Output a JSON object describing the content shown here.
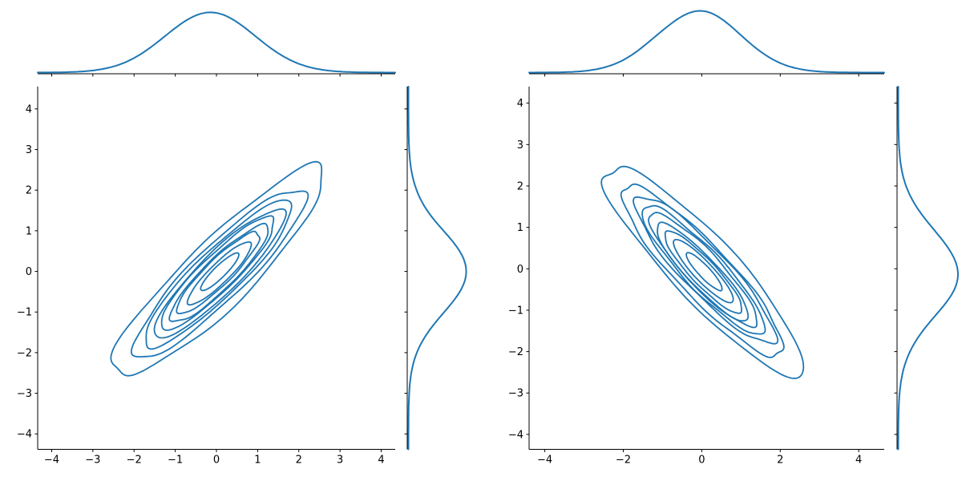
{
  "chart_data": {
    "type": "kde_jointplot_pair",
    "title": "",
    "description": "Two seaborn-style joint KDE contour plots with marginal density curves. Left panel: positively correlated bivariate normal data (contours elongated along +45 deg diagonal). Right panel: negatively correlated data (contours along -45 deg diagonal). No axis titles, no legend.",
    "style": {
      "line_color": "#1f77b4",
      "axis_color": "#000000",
      "tick_label_color": "#000000",
      "background": "#ffffff",
      "tick_font_size": 13,
      "contour_line_width": 1.8,
      "marginal_line_width": 2,
      "spine_width": 1,
      "tick_length": 3.5
    },
    "panels": [
      {
        "name": "joint-kde-positive-correlation",
        "correlation_sign": "positive",
        "x_axis": {
          "lim": [
            -4.34,
            4.34
          ],
          "ticks": [
            -4,
            -3,
            -2,
            -1,
            0,
            1,
            2,
            3,
            4
          ]
        },
        "y_axis": {
          "lim": [
            -4.38,
            4.55
          ],
          "ticks": [
            -4,
            -3,
            -2,
            -1,
            0,
            1,
            2,
            3,
            4
          ]
        },
        "contours": {
          "levels": 9,
          "center_x": 0.05,
          "center_y": -0.03,
          "orientation_deg": 45,
          "semi_axis_along_diag": 3.55,
          "semi_axis_across_diag": 0.8,
          "level_ratios": [
            1,
            0.81,
            0.7,
            0.615,
            0.54,
            0.465,
            0.39,
            0.3,
            0.18
          ],
          "outer_extent_x": [
            -2.6,
            2.55
          ],
          "outer_extent_y": [
            -2.5,
            2.45
          ]
        },
        "marginal_top": {
          "type": "kde",
          "mean": -0.15,
          "std": 1.1,
          "peak_frac": 0.95
        },
        "marginal_right": {
          "type": "kde",
          "mean": 0.0,
          "std": 1.02,
          "peak_frac": 0.78
        },
        "seed": 11
      },
      {
        "name": "joint-kde-negative-correlation",
        "correlation_sign": "negative",
        "x_axis": {
          "lim": [
            -4.4,
            4.65
          ],
          "ticks": [
            -4,
            -2,
            0,
            2,
            4
          ]
        },
        "y_axis": {
          "lim": [
            -4.36,
            4.4
          ],
          "ticks": [
            -4,
            -3,
            -2,
            -1,
            0,
            1,
            2,
            3,
            4
          ]
        },
        "contours": {
          "levels": 9,
          "center_x": 0.05,
          "center_y": -0.05,
          "orientation_deg": -45,
          "semi_axis_along_diag": 3.5,
          "semi_axis_across_diag": 0.8,
          "level_ratios": [
            1,
            0.81,
            0.7,
            0.615,
            0.54,
            0.465,
            0.39,
            0.3,
            0.18
          ],
          "outer_extent_x": [
            -2.4,
            2.5
          ],
          "outer_extent_y": [
            -2.5,
            2.5
          ]
        },
        "marginal_top": {
          "type": "kde",
          "mean": -0.08,
          "std": 1.08,
          "peak_frac": 0.97
        },
        "marginal_right": {
          "type": "kde",
          "mean": -0.12,
          "std": 1.05,
          "peak_frac": 0.82
        },
        "seed": 23
      }
    ]
  }
}
